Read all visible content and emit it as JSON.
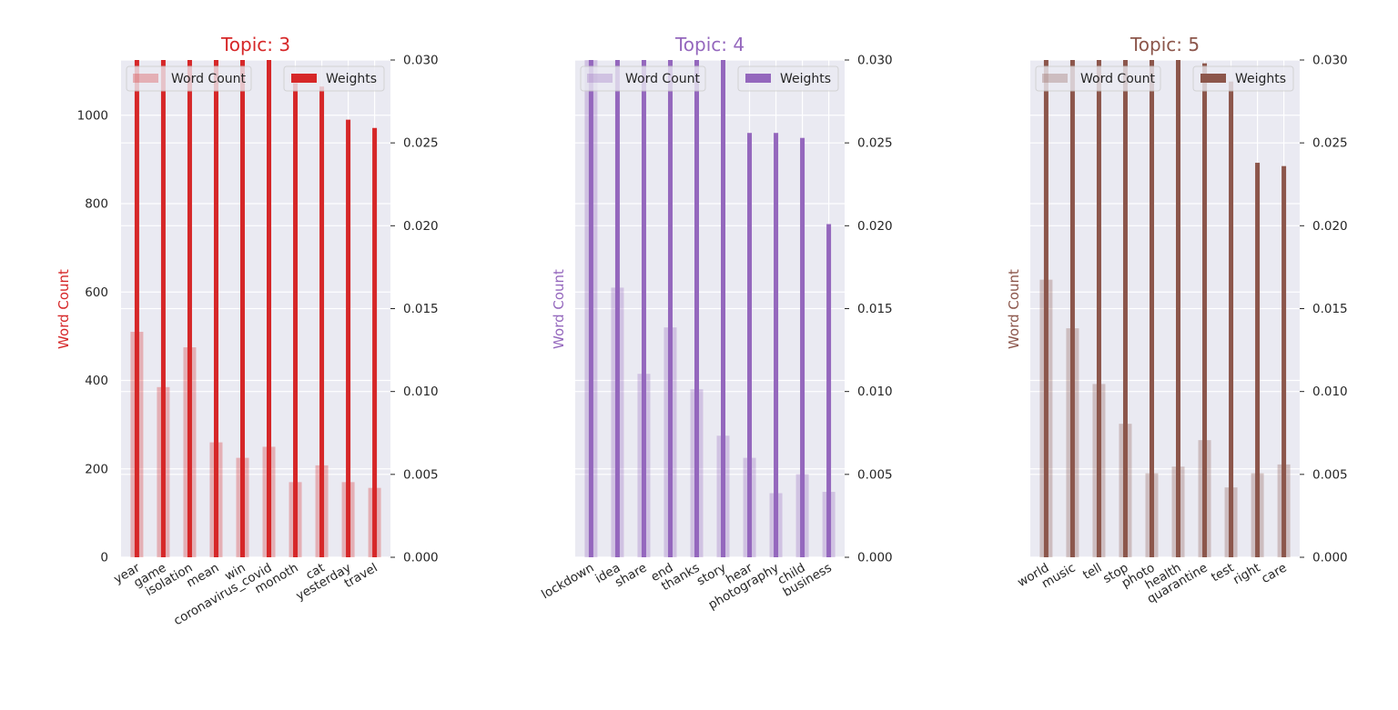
{
  "chart_data": [
    {
      "type": "bar",
      "title": "Topic: 3",
      "color": "#d62728",
      "ylabel": "Word Count",
      "ylim_left": [
        0,
        1125
      ],
      "ylim_right": [
        0,
        0.03
      ],
      "yticks_left": [
        "0",
        "200",
        "400",
        "600",
        "800",
        "1000"
      ],
      "yticks_right": [
        "0.000",
        "0.005",
        "0.010",
        "0.015",
        "0.020",
        "0.025",
        "0.030"
      ],
      "legend_left": "Word Count",
      "legend_right": "Weights",
      "grid": true,
      "categories": [
        "year",
        "game",
        "isolation",
        "mean",
        "win",
        "coronavirus_covid",
        "monoth",
        "cat",
        "yesterday",
        "travel"
      ],
      "series": [
        {
          "name": "Word Count",
          "axis": "left",
          "values": [
            510,
            385,
            475,
            260,
            225,
            250,
            170,
            208,
            170,
            157
          ]
        },
        {
          "name": "Weights",
          "axis": "right",
          "values": [
            0.031,
            0.031,
            0.031,
            0.031,
            0.031,
            0.031,
            0.0286,
            0.0284,
            0.0264,
            0.0259
          ]
        }
      ]
    },
    {
      "type": "bar",
      "title": "Topic: 4",
      "color": "#9467bd",
      "ylabel": "Word Count",
      "ylim_left": [
        0,
        1125
      ],
      "ylim_right": [
        0,
        0.03
      ],
      "yticks_right": [
        "0.000",
        "0.005",
        "0.010",
        "0.015",
        "0.020",
        "0.025",
        "0.030"
      ],
      "legend_left": "Word Count",
      "legend_right": "Weights",
      "grid": true,
      "categories": [
        "lockdown",
        "idea",
        "share",
        "end",
        "thanks",
        "story",
        "hear",
        "photography",
        "child",
        "business"
      ],
      "series": [
        {
          "name": "Word Count",
          "axis": "left",
          "values": [
            1130,
            610,
            415,
            520,
            380,
            275,
            225,
            145,
            188,
            148
          ]
        },
        {
          "name": "Weights",
          "axis": "right",
          "values": [
            0.031,
            0.031,
            0.031,
            0.031,
            0.031,
            0.031,
            0.0256,
            0.0256,
            0.0253,
            0.0201
          ]
        }
      ]
    },
    {
      "type": "bar",
      "title": "Topic: 5",
      "color": "#8c564b",
      "ylabel": "Word Count",
      "ylim_left": [
        0,
        1125
      ],
      "ylim_right": [
        0,
        0.03
      ],
      "yticks_right": [
        "0.000",
        "0.005",
        "0.010",
        "0.015",
        "0.020",
        "0.025",
        "0.030"
      ],
      "legend_left": "Word Count",
      "legend_right": "Weights",
      "grid": true,
      "categories": [
        "world",
        "music",
        "tell",
        "stop",
        "photo",
        "health",
        "quarantine",
        "test",
        "right",
        "care"
      ],
      "series": [
        {
          "name": "Word Count",
          "axis": "left",
          "values": [
            628,
            518,
            392,
            302,
            190,
            205,
            265,
            158,
            190,
            210
          ]
        },
        {
          "name": "Weights",
          "axis": "right",
          "values": [
            0.031,
            0.031,
            0.031,
            0.031,
            0.031,
            0.031,
            0.0298,
            0.0287,
            0.0238,
            0.0236
          ]
        }
      ]
    }
  ]
}
